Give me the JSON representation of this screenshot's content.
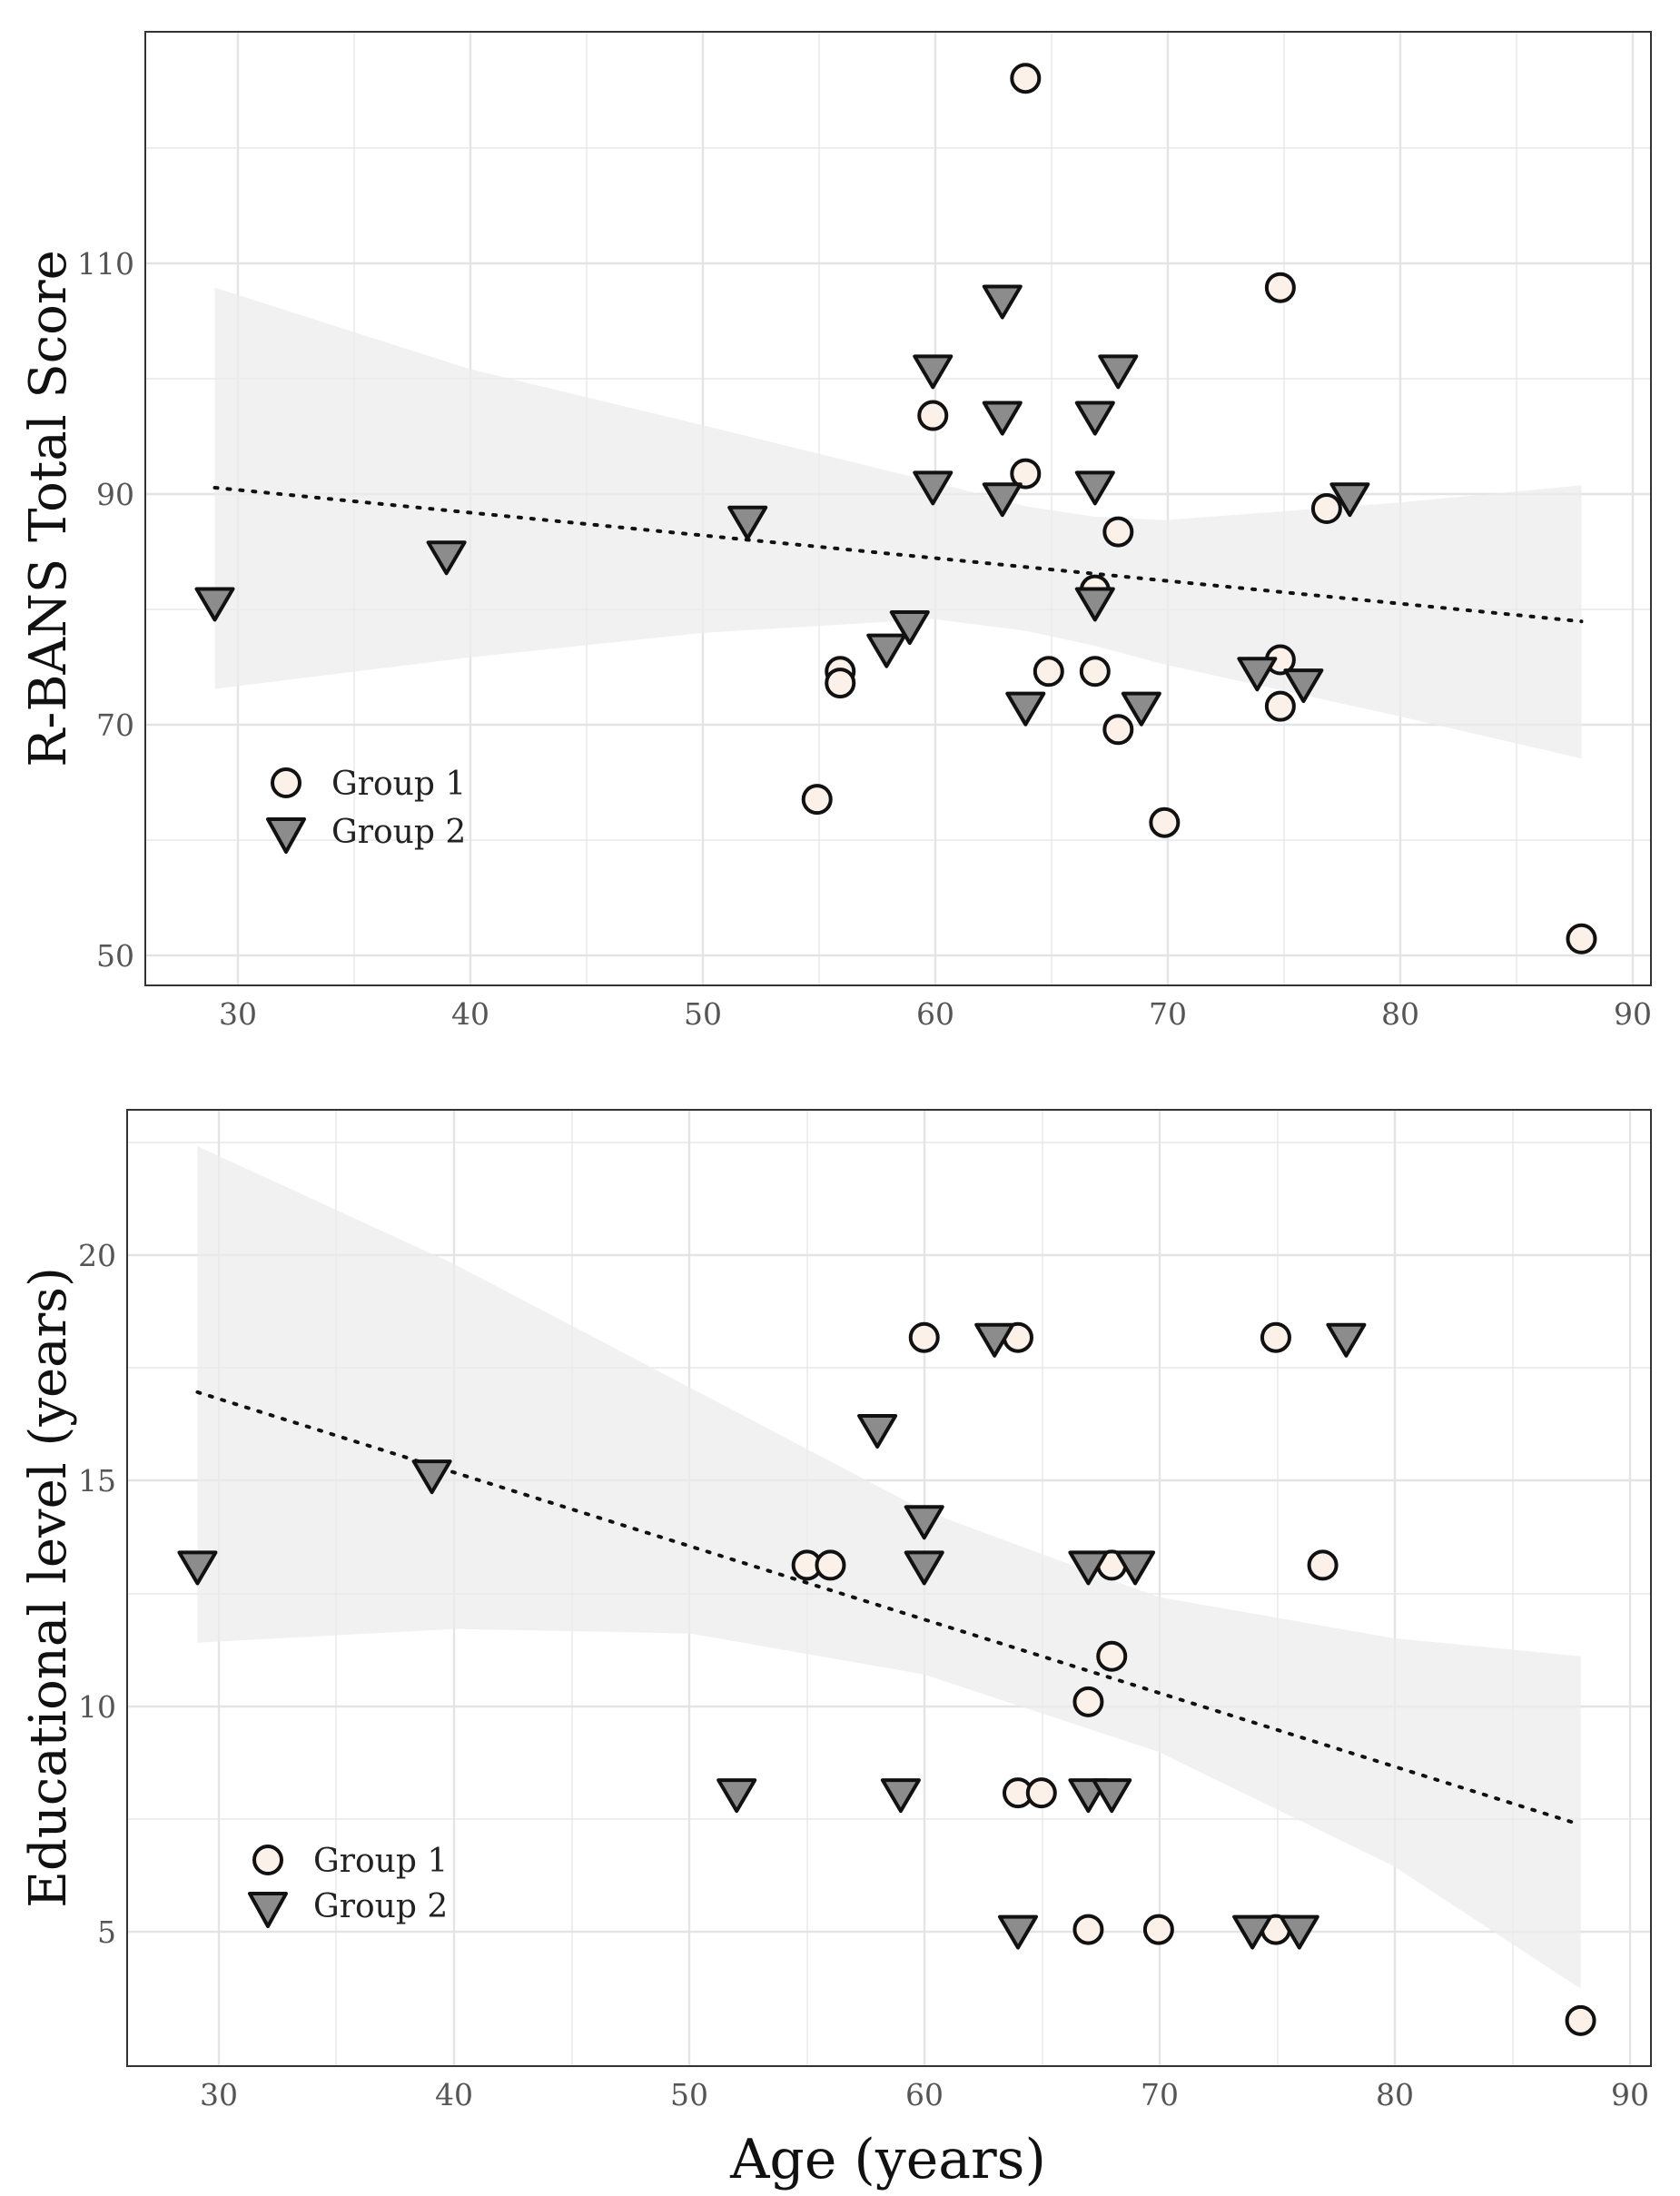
{
  "chart_data": [
    {
      "type": "scatter",
      "title": "",
      "xlabel": "",
      "ylabel": "R-BANS Total Score",
      "xlim": [
        26,
        91
      ],
      "ylim": [
        47,
        129
      ],
      "xticks": [
        30,
        40,
        50,
        60,
        70,
        80,
        90
      ],
      "yticks": [
        50,
        70,
        90,
        110
      ],
      "grid": true,
      "legend_position": "bottom-left",
      "trend": {
        "style": "dotted",
        "x": [
          29,
          88
        ],
        "y": [
          89.8,
          78.3
        ]
      },
      "confidence_band": {
        "x": [
          29,
          40,
          50,
          60,
          64,
          67,
          70,
          80,
          88
        ],
        "upper": [
          107,
          100,
          95.2,
          90.3,
          88.2,
          87.3,
          87,
          88.5,
          90
        ],
        "lower": [
          72.5,
          75.2,
          77.3,
          78.5,
          77.5,
          76.2,
          74.6,
          70.2,
          66.5
        ]
      },
      "series": [
        {
          "name": "Group 1",
          "marker": "circle",
          "x": [
            64,
            75,
            60,
            64,
            77,
            68,
            67,
            56,
            56,
            65,
            67,
            75,
            75,
            68,
            55,
            70,
            88
          ],
          "y": [
            125,
            107,
            96,
            91,
            88,
            86,
            81,
            74,
            73,
            74,
            74,
            75,
            71,
            69,
            63,
            61,
            51
          ]
        },
        {
          "name": "Group 2",
          "marker": "triangle-down",
          "x": [
            63,
            60,
            68,
            63,
            67,
            60,
            63,
            67,
            78,
            52,
            39,
            29,
            67,
            59,
            58,
            74,
            76,
            64,
            69
          ],
          "y": [
            106,
            100,
            100,
            96,
            96,
            90,
            89,
            90,
            89,
            87,
            84,
            80,
            80,
            78,
            76,
            74,
            73,
            71,
            71
          ]
        }
      ]
    },
    {
      "type": "scatter",
      "title": "",
      "xlabel": "Age (years)",
      "ylabel": "Educational level (years)",
      "xlim": [
        26,
        91
      ],
      "ylim": [
        2,
        23
      ],
      "xticks": [
        30,
        40,
        50,
        60,
        70,
        80,
        90
      ],
      "yticks": [
        5,
        10,
        15,
        20
      ],
      "grid": true,
      "legend_position": "bottom-left",
      "trend": {
        "style": "dotted",
        "x": [
          29,
          88
        ],
        "y": [
          16.8,
          7.3
        ]
      },
      "confidence_band": {
        "x": [
          29,
          40,
          50,
          60,
          70,
          80,
          88
        ],
        "upper": [
          22.2,
          19.6,
          16.9,
          14.2,
          12.3,
          11.4,
          11.0
        ],
        "lower": [
          11.3,
          11.6,
          11.5,
          10.6,
          8.9,
          6.4,
          3.7
        ]
      },
      "series": [
        {
          "name": "Group 1",
          "marker": "circle",
          "x": [
            60,
            64,
            75,
            55,
            56,
            68,
            77,
            68,
            67,
            64,
            65,
            67,
            70,
            75,
            88
          ],
          "y": [
            18,
            18,
            18,
            13,
            13,
            13,
            13,
            11,
            10,
            8,
            8,
            5,
            5,
            5,
            3
          ]
        },
        {
          "name": "Group 2",
          "marker": "triangle-down",
          "x": [
            63,
            78,
            58,
            39,
            60,
            29,
            60,
            67,
            69,
            52,
            59,
            67,
            68,
            64,
            74,
            76
          ],
          "y": [
            18,
            18,
            16,
            15,
            14,
            13,
            13,
            13,
            13,
            8,
            8,
            8,
            8,
            5,
            5,
            5
          ]
        }
      ]
    }
  ],
  "colors": {
    "group1_fill": "#FBF1E8",
    "group2_fill": "#8C8C8C",
    "marker_stroke": "#111111",
    "band_fill": "#EBEBEB",
    "grid": "#E4E4E4",
    "panel_border": "#333333",
    "tick_label": "#555555"
  }
}
